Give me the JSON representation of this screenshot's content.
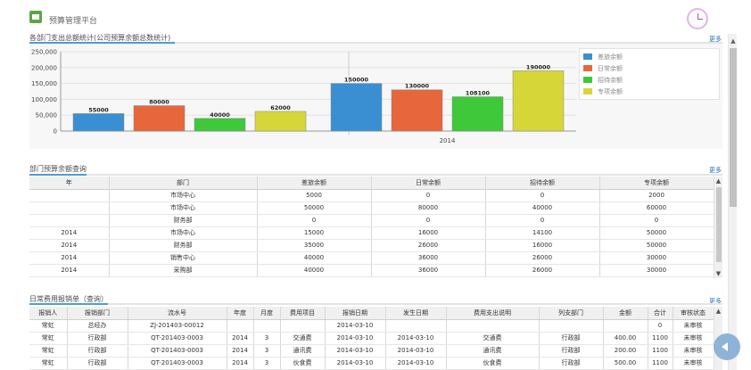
{
  "app": {
    "title": "预算管理平台"
  },
  "section1": {
    "title": "各部门支出总额统计(公司预算余额总数统计)",
    "more": "更多"
  },
  "section2": {
    "title": "部门预算余额查询",
    "more": "更多"
  },
  "section3": {
    "title": "日常费用报销单（查询）",
    "more": "更多"
  },
  "chart_data": {
    "type": "bar",
    "y_ticks": [
      "250,000",
      "200,000",
      "150,000",
      "100,000",
      "50,000",
      "0"
    ],
    "ylim": [
      0,
      250000
    ],
    "categories": [
      "",
      "2014"
    ],
    "series": [
      {
        "name": "差旅余额",
        "color": "#3a8fd2",
        "values": [
          55000,
          150000
        ],
        "labels": [
          "55000",
          "150000"
        ]
      },
      {
        "name": "日常余额",
        "color": "#e8663c",
        "values": [
          80000,
          130000
        ],
        "labels": [
          "80000",
          "130000"
        ]
      },
      {
        "name": "招待余额",
        "color": "#3ec83a",
        "values": [
          40000,
          108100
        ],
        "labels": [
          "40000",
          "108100"
        ]
      },
      {
        "name": "专项余额",
        "color": "#d6d639",
        "values": [
          62000,
          190000
        ],
        "labels": [
          "62000",
          "190000"
        ]
      }
    ],
    "legend_position": "top-right",
    "grid": true
  },
  "balance_table": {
    "headers": [
      "年",
      "部门",
      "差旅余额",
      "日常余额",
      "招待余额",
      "专项余额"
    ],
    "rows": [
      [
        "",
        "市场中心",
        "5000",
        "0",
        "0",
        "2000"
      ],
      [
        "",
        "市场中心",
        "50000",
        "80000",
        "40000",
        "60000"
      ],
      [
        "",
        "财务部",
        "0",
        "0",
        "0",
        "0"
      ],
      [
        "2014",
        "市场中心",
        "15000",
        "16000",
        "14100",
        "50000"
      ],
      [
        "2014",
        "财务部",
        "35000",
        "26000",
        "16000",
        "50000"
      ],
      [
        "2014",
        "销售中心",
        "40000",
        "36000",
        "26000",
        "30000"
      ],
      [
        "2014",
        "采购部",
        "40000",
        "36000",
        "26000",
        "30000"
      ]
    ]
  },
  "expense_table": {
    "headers": [
      "报销人",
      "报销部门",
      "流水号",
      "年度",
      "月度",
      "费用项目",
      "报销日期",
      "发生日期",
      "费用支出说明",
      "列支部门",
      "金额",
      "合计",
      "审核状态"
    ],
    "rows": [
      [
        "常虹",
        "总经办",
        "ZJ-201403-00012",
        "",
        "",
        "",
        "2014-03-10",
        "",
        "",
        "",
        "",
        "0",
        "未审核"
      ],
      [
        "常虹",
        "行政部",
        "QT-201403-0003",
        "2014",
        "3",
        "交通费",
        "2014-03-10",
        "2014-03-10",
        "交通费",
        "行政部",
        "400.00",
        "1100",
        "未审核"
      ],
      [
        "常虹",
        "行政部",
        "QT-201403-0003",
        "2014",
        "3",
        "通讯费",
        "2014-03-10",
        "2014-03-10",
        "通讯费",
        "行政部",
        "200.00",
        "1100",
        "未审核"
      ],
      [
        "常虹",
        "行政部",
        "QT-201403-0003",
        "2014",
        "3",
        "伙食费",
        "2014-03-10",
        "2014-03-10",
        "伙食费",
        "行政部",
        "500.00",
        "1100",
        "未审核"
      ]
    ]
  }
}
